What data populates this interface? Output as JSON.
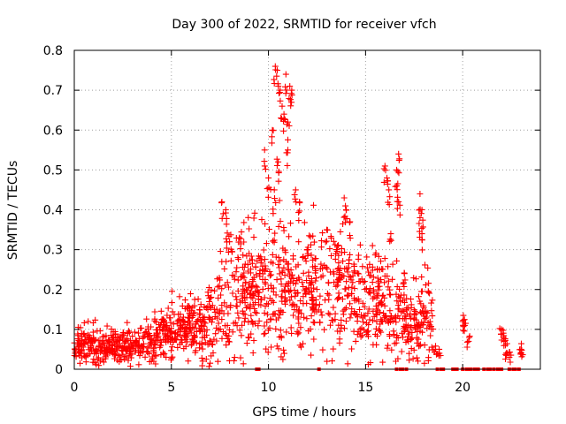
{
  "chart_data": {
    "type": "scatter",
    "title": "Day 300 of 2022, SRMTID for receiver vfch",
    "xlabel": "GPS time / hours",
    "ylabel": "SRMTID / TECUs",
    "xlim": [
      0,
      24
    ],
    "ylim": [
      0,
      0.8
    ],
    "xticks": [
      0,
      5,
      10,
      15,
      20
    ],
    "xtick_labels": [
      "0",
      "5",
      "10",
      "15",
      "20"
    ],
    "yticks": [
      0,
      0.1,
      0.2,
      0.3,
      0.4,
      0.5,
      0.6,
      0.7,
      0.8
    ],
    "ytick_labels": [
      "0",
      "0.1",
      "0.2",
      "0.3",
      "0.4",
      "0.5",
      "0.6",
      "0.7",
      "0.8"
    ],
    "grid": true,
    "marker": "+",
    "color": "#ff0000",
    "envelope_hours": [
      0,
      0.5,
      1,
      1.5,
      2,
      2.5,
      3,
      3.5,
      4,
      4.5,
      5,
      5.5,
      6,
      6.5,
      7,
      7.5,
      8,
      8.5,
      9,
      9.5,
      10,
      10.5,
      11,
      11.5,
      12,
      12.5,
      13,
      13.5,
      14,
      14.5,
      15,
      15.5,
      16,
      16.5,
      17,
      17.5,
      18,
      18.5
    ],
    "envelope_median": [
      0.05,
      0.06,
      0.06,
      0.055,
      0.06,
      0.055,
      0.055,
      0.06,
      0.07,
      0.08,
      0.09,
      0.1,
      0.1,
      0.1,
      0.1,
      0.14,
      0.2,
      0.2,
      0.18,
      0.17,
      0.2,
      0.22,
      0.2,
      0.18,
      0.19,
      0.2,
      0.2,
      0.22,
      0.2,
      0.16,
      0.17,
      0.18,
      0.15,
      0.13,
      0.12,
      0.1,
      0.12,
      0.12
    ],
    "envelope_spread": [
      0.02,
      0.025,
      0.025,
      0.02,
      0.02,
      0.02,
      0.02,
      0.02,
      0.03,
      0.03,
      0.03,
      0.03,
      0.035,
      0.04,
      0.05,
      0.07,
      0.1,
      0.08,
      0.07,
      0.07,
      0.1,
      0.1,
      0.08,
      0.07,
      0.07,
      0.07,
      0.07,
      0.07,
      0.07,
      0.06,
      0.07,
      0.06,
      0.06,
      0.05,
      0.04,
      0.04,
      0.05,
      0.05
    ],
    "peaks": [
      {
        "x": 7.6,
        "y": 0.42
      },
      {
        "x": 7.8,
        "y": 0.4
      },
      {
        "x": 8.5,
        "y": 0.33
      },
      {
        "x": 9.8,
        "y": 0.55
      },
      {
        "x": 10.0,
        "y": 0.48
      },
      {
        "x": 10.2,
        "y": 0.6
      },
      {
        "x": 10.35,
        "y": 0.76
      },
      {
        "x": 10.45,
        "y": 0.75
      },
      {
        "x": 10.6,
        "y": 0.7
      },
      {
        "x": 10.7,
        "y": 0.66
      },
      {
        "x": 10.8,
        "y": 0.64
      },
      {
        "x": 10.9,
        "y": 0.74
      },
      {
        "x": 11.0,
        "y": 0.55
      },
      {
        "x": 11.1,
        "y": 0.71
      },
      {
        "x": 11.2,
        "y": 0.7
      },
      {
        "x": 11.0,
        "y": 0.62
      },
      {
        "x": 10.5,
        "y": 0.52
      },
      {
        "x": 10.3,
        "y": 0.45
      },
      {
        "x": 11.4,
        "y": 0.45
      },
      {
        "x": 11.6,
        "y": 0.42
      },
      {
        "x": 12.0,
        "y": 0.3
      },
      {
        "x": 13.0,
        "y": 0.35
      },
      {
        "x": 13.5,
        "y": 0.3
      },
      {
        "x": 13.9,
        "y": 0.43
      },
      {
        "x": 14.0,
        "y": 0.4
      },
      {
        "x": 14.2,
        "y": 0.37
      },
      {
        "x": 16.0,
        "y": 0.51
      },
      {
        "x": 16.1,
        "y": 0.48
      },
      {
        "x": 16.2,
        "y": 0.45
      },
      {
        "x": 16.6,
        "y": 0.5
      },
      {
        "x": 16.7,
        "y": 0.54
      },
      {
        "x": 16.6,
        "y": 0.46
      },
      {
        "x": 16.7,
        "y": 0.42
      },
      {
        "x": 17.8,
        "y": 0.44
      },
      {
        "x": 17.9,
        "y": 0.4
      },
      {
        "x": 17.9,
        "y": 0.34
      },
      {
        "x": 17.8,
        "y": 0.38
      },
      {
        "x": 16.3,
        "y": 0.34
      },
      {
        "x": 17.0,
        "y": 0.24
      }
    ],
    "late_clusters": [
      {
        "x": 18.6,
        "y": 0.05
      },
      {
        "x": 18.8,
        "y": 0.04
      },
      {
        "x": 20.0,
        "y": 0.12
      },
      {
        "x": 20.1,
        "y": 0.11
      },
      {
        "x": 20.3,
        "y": 0.07
      },
      {
        "x": 22.0,
        "y": 0.1
      },
      {
        "x": 22.1,
        "y": 0.08
      },
      {
        "x": 22.2,
        "y": 0.06
      },
      {
        "x": 22.3,
        "y": 0.04
      },
      {
        "x": 22.4,
        "y": 0.03
      },
      {
        "x": 23.0,
        "y": 0.05
      },
      {
        "x": 23.0,
        "y": 0.04
      }
    ],
    "zero_points_x": [
      9.4,
      9.5,
      12.6,
      16.6,
      16.8,
      16.9,
      17.1,
      18.7,
      18.9,
      19.0,
      19.5,
      19.6,
      19.7,
      20.0,
      20.2,
      20.3,
      20.4,
      20.6,
      20.7,
      20.8,
      21.1,
      21.3,
      21.4,
      21.6,
      21.8,
      21.9,
      22.0,
      22.4,
      22.6,
      22.7,
      22.9
    ]
  }
}
